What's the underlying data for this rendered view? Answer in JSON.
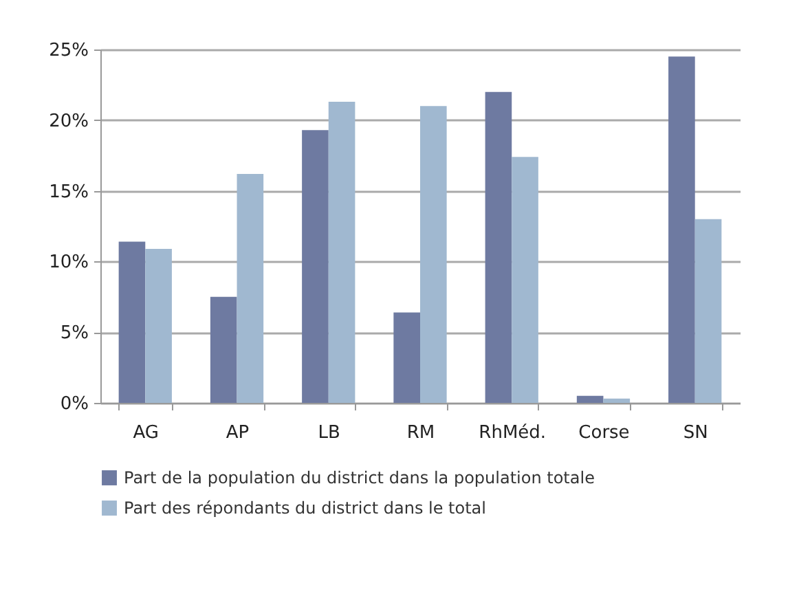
{
  "chart_data": {
    "type": "bar",
    "categories": [
      "AG",
      "AP",
      "LB",
      "RM",
      "RhMéd.",
      "Corse",
      "SN"
    ],
    "series": [
      {
        "name": "Part de la population du district dans la population totale",
        "color": "#6e7aa1",
        "values": [
          11.4,
          7.5,
          19.3,
          6.4,
          22.0,
          0.5,
          24.5
        ]
      },
      {
        "name": "Part des répondants du district dans le total",
        "color": "#a0b8d0",
        "values": [
          10.9,
          16.2,
          21.3,
          21.0,
          17.4,
          0.3,
          13.0
        ]
      }
    ],
    "ylim": [
      0,
      25
    ],
    "yticks": [
      {
        "value": 0,
        "label": "0%"
      },
      {
        "value": 5,
        "label": "5%"
      },
      {
        "value": 10,
        "label": "10%"
      },
      {
        "value": 15,
        "label": "15%"
      },
      {
        "value": 20,
        "label": "20%"
      },
      {
        "value": 25,
        "label": "25%"
      }
    ],
    "grid": "y",
    "legend": "bottom"
  }
}
